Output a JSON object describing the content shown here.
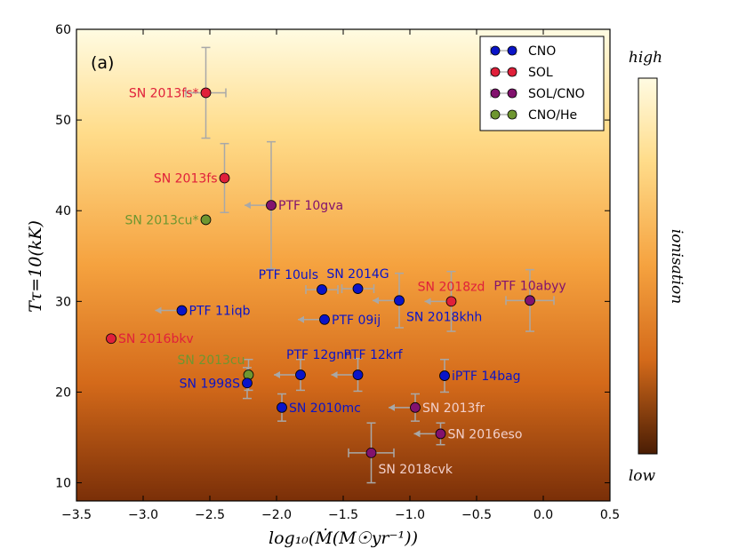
{
  "chart_data": {
    "type": "scatter",
    "panel_label": "(a)",
    "xlabel": "log₁₀(Ṁ(M☉yr⁻¹))",
    "ylabel": "Tτ=10(kK)",
    "xlim": [
      -3.5,
      0.5
    ],
    "ylim": [
      8,
      60
    ],
    "xticks": [
      -3.5,
      -3.0,
      -2.5,
      -2.0,
      -1.5,
      -1.0,
      -0.5,
      0.0,
      0.5
    ],
    "xtick_labels": [
      "−3.5",
      "−3.0",
      "−2.5",
      "−2.0",
      "−1.5",
      "−1.0",
      "−0.5",
      "0.0",
      "0.5"
    ],
    "yticks": [
      10,
      20,
      30,
      40,
      50,
      60
    ],
    "ytick_labels": [
      "10",
      "20",
      "30",
      "40",
      "50",
      "60"
    ],
    "legend_position": "top-right",
    "legend": [
      {
        "name": "CNO",
        "color": "#0a14c8"
      },
      {
        "name": "SOL",
        "color": "#e0203a"
      },
      {
        "name": "SOL/CNO",
        "color": "#82126e"
      },
      {
        "name": "CNO/He",
        "color": "#6e9630"
      }
    ],
    "colorbar": {
      "top_label": "high",
      "bottom_label": "low",
      "side_label": "ionisation"
    },
    "points": [
      {
        "label": "SN 2013fs*",
        "group": "SOL",
        "x": -2.53,
        "y": 53.0,
        "xerr": 0.15,
        "yerr": 5.0,
        "upper_limit": false,
        "label_color": "#e0203a",
        "label_side": "left"
      },
      {
        "label": "SN 2013fs",
        "group": "SOL",
        "x": -2.39,
        "y": 43.6,
        "xerr": 0.0,
        "yerr": 3.8,
        "upper_limit": false,
        "label_color": "#e0203a",
        "label_side": "left"
      },
      {
        "label": "PTF 10gva",
        "group": "SOL/CNO",
        "x": -2.04,
        "y": 40.6,
        "xerr": 0.0,
        "yerr": 7.0,
        "upper_limit": true,
        "label_color": "#82126e",
        "label_side": "right"
      },
      {
        "label": "SN 2013cu*",
        "group": "CNO/He",
        "x": -2.53,
        "y": 39.0,
        "xerr": 0.0,
        "yerr": 0.0,
        "upper_limit": false,
        "label_color": "#6e9630",
        "label_side": "left"
      },
      {
        "label": "PTF 10uls",
        "group": "CNO",
        "x": -1.66,
        "y": 31.3,
        "xerr": 0.12,
        "yerr": 0.0,
        "upper_limit": false,
        "label_color": "#0a14c8",
        "label_side": "above-left"
      },
      {
        "label": "SN 2014G",
        "group": "CNO",
        "x": -1.39,
        "y": 31.4,
        "xerr": 0.12,
        "yerr": 0.0,
        "upper_limit": false,
        "label_color": "#0a14c8",
        "label_side": "above"
      },
      {
        "label": "SN 2018zd",
        "group": "SOL",
        "x": -0.69,
        "y": 30.0,
        "xerr": 0.0,
        "yerr": 3.3,
        "upper_limit": true,
        "label_color": "#e0203a",
        "label_side": "above"
      },
      {
        "label": "PTF 10abyy",
        "group": "SOL/CNO",
        "x": -0.1,
        "y": 30.1,
        "xerr": 0.18,
        "yerr": 3.4,
        "upper_limit": false,
        "label_color": "#82126e",
        "label_side": "above"
      },
      {
        "label": "SN 2018khh",
        "group": "CNO",
        "x": -1.08,
        "y": 30.1,
        "xerr": 0.0,
        "yerr": 3.0,
        "upper_limit": true,
        "label_color": "#0a14c8",
        "label_side": "below-right"
      },
      {
        "label": "PTF 11iqb",
        "group": "CNO",
        "x": -2.71,
        "y": 29.0,
        "xerr": 0.0,
        "yerr": 0.0,
        "upper_limit": true,
        "label_color": "#0a14c8",
        "label_side": "right"
      },
      {
        "label": "PTF 09ij",
        "group": "CNO",
        "x": -1.64,
        "y": 28.0,
        "xerr": 0.0,
        "yerr": 0.0,
        "upper_limit": true,
        "label_color": "#0a14c8",
        "label_side": "right"
      },
      {
        "label": "SN 2016bkv",
        "group": "SOL",
        "x": -3.24,
        "y": 25.9,
        "xerr": 0.0,
        "yerr": 0.0,
        "upper_limit": false,
        "label_color": "#e0203a",
        "label_side": "right"
      },
      {
        "label": "SN 2013cu",
        "group": "CNO/He",
        "x": -2.21,
        "y": 21.9,
        "xerr": 0.0,
        "yerr": 1.7,
        "upper_limit": false,
        "label_color": "#6e9630",
        "label_side": "above-left"
      },
      {
        "label": "SN 1998S",
        "group": "CNO",
        "x": -2.22,
        "y": 21.0,
        "xerr": 0.0,
        "yerr": 1.7,
        "upper_limit": false,
        "label_color": "#0a14c8",
        "label_side": "left"
      },
      {
        "label": "PTF 12gnn",
        "group": "CNO",
        "x": -1.82,
        "y": 21.9,
        "xerr": 0.0,
        "yerr": 1.7,
        "upper_limit": true,
        "label_color": "#0a14c8",
        "label_side": "above-right"
      },
      {
        "label": "PTF 12krf",
        "group": "CNO",
        "x": -1.39,
        "y": 21.9,
        "xerr": 0.0,
        "yerr": 1.8,
        "upper_limit": true,
        "label_color": "#0a14c8",
        "label_side": "above-right"
      },
      {
        "label": "iPTF 14bag",
        "group": "CNO",
        "x": -0.74,
        "y": 21.8,
        "xerr": 0.0,
        "yerr": 1.8,
        "upper_limit": false,
        "label_color": "#0a14c8",
        "label_side": "right"
      },
      {
        "label": "SN 2010mc",
        "group": "CNO",
        "x": -1.96,
        "y": 18.3,
        "xerr": 0.0,
        "yerr": 1.5,
        "upper_limit": false,
        "label_color": "#0a14c8",
        "label_side": "right"
      },
      {
        "label": "SN 2013fr",
        "group": "SOL/CNO",
        "x": -0.96,
        "y": 18.3,
        "xerr": 0.0,
        "yerr": 1.5,
        "upper_limit": true,
        "label_color": "#f2d0cc",
        "label_side": "right"
      },
      {
        "label": "SN 2016eso",
        "group": "SOL/CNO",
        "x": -0.77,
        "y": 15.4,
        "xerr": 0.0,
        "yerr": 1.2,
        "upper_limit": true,
        "label_color": "#f2d0cc",
        "label_side": "right"
      },
      {
        "label": "SN 2018cvk",
        "group": "SOL/CNO",
        "x": -1.29,
        "y": 13.3,
        "xerr": 0.17,
        "yerr": 3.3,
        "upper_limit": false,
        "label_color": "#f2d0cc",
        "label_side": "below-right"
      }
    ]
  }
}
